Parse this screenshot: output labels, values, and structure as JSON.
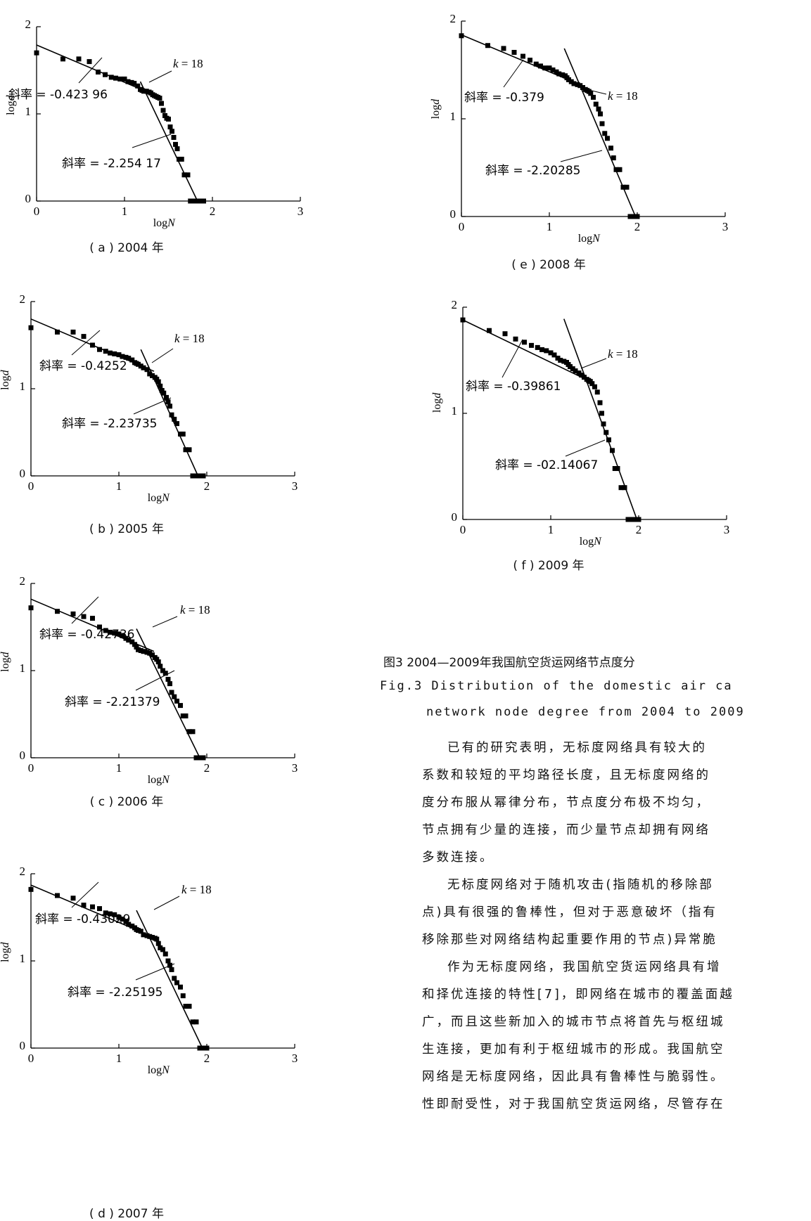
{
  "chart_data": [
    {
      "type": "scatter",
      "panel": "a",
      "caption": "( a ) 2004 年",
      "xlabel": "logN",
      "ylabel": "logd",
      "xlim": [
        0,
        3
      ],
      "ylim": [
        0,
        2
      ],
      "xticks": [
        "0",
        "1",
        "2",
        "3"
      ],
      "yticks": [
        "0",
        "1",
        "2"
      ],
      "k_label": "k = 18",
      "slope1_label": "斜率 = -0.423 96",
      "slope2_label": "斜率 = -2.254 17",
      "fit1": {
        "x": [
          0,
          1.38
        ],
        "y": [
          1.79,
          1.2
        ]
      },
      "fit2": {
        "x": [
          1.18,
          1.83
        ],
        "y": [
          1.37,
          0
        ]
      },
      "points": {
        "x": [
          0.0,
          0.3,
          0.48,
          0.6,
          0.7,
          0.78,
          0.85,
          0.9,
          0.95,
          1.0,
          1.04,
          1.08,
          1.11,
          1.15,
          1.18,
          1.2,
          1.22,
          1.25,
          1.28,
          1.3,
          1.32,
          1.34,
          1.36,
          1.38,
          1.4,
          1.42,
          1.44,
          1.46,
          1.48,
          1.5,
          1.52,
          1.54,
          1.56,
          1.58,
          1.6,
          1.62,
          1.65,
          1.68,
          1.72,
          1.75,
          1.78,
          1.81,
          1.84,
          1.87,
          1.9
        ],
        "y": [
          1.7,
          1.63,
          1.63,
          1.6,
          1.48,
          1.45,
          1.42,
          1.41,
          1.4,
          1.4,
          1.37,
          1.36,
          1.35,
          1.32,
          1.28,
          1.27,
          1.26,
          1.26,
          1.25,
          1.24,
          1.22,
          1.21,
          1.2,
          1.19,
          1.18,
          1.12,
          1.04,
          0.98,
          0.95,
          0.94,
          0.85,
          0.8,
          0.73,
          0.65,
          0.6,
          0.48,
          0.48,
          0.3,
          0.3,
          0.0,
          0.0,
          0.0,
          0.0,
          0.0,
          0.0
        ]
      }
    },
    {
      "type": "scatter",
      "panel": "b",
      "caption": "( b ) 2005 年",
      "xlabel": "logN",
      "ylabel": "logd",
      "xlim": [
        0,
        3
      ],
      "ylim": [
        0,
        2
      ],
      "xticks": [
        "0",
        "1",
        "2",
        "3"
      ],
      "yticks": [
        "0",
        "1",
        "2"
      ],
      "k_label": "k = 18",
      "slope1_label": "斜率 = -0.4252",
      "slope2_label": "斜率 = -2.23735",
      "fit1": {
        "x": [
          0,
          1.4
        ],
        "y": [
          1.8,
          1.2
        ]
      },
      "fit2": {
        "x": [
          1.25,
          1.9
        ],
        "y": [
          1.45,
          0
        ]
      },
      "points": {
        "x": [
          0.0,
          0.3,
          0.48,
          0.6,
          0.7,
          0.78,
          0.85,
          0.9,
          0.95,
          1.0,
          1.04,
          1.08,
          1.11,
          1.15,
          1.18,
          1.2,
          1.22,
          1.25,
          1.28,
          1.32,
          1.35,
          1.38,
          1.41,
          1.43,
          1.45,
          1.47,
          1.49,
          1.51,
          1.54,
          1.56,
          1.58,
          1.6,
          1.63,
          1.66,
          1.7,
          1.73,
          1.76,
          1.8,
          1.84,
          1.88,
          1.92,
          1.96
        ],
        "y": [
          1.7,
          1.65,
          1.65,
          1.6,
          1.5,
          1.45,
          1.43,
          1.41,
          1.4,
          1.39,
          1.37,
          1.36,
          1.35,
          1.33,
          1.3,
          1.29,
          1.28,
          1.26,
          1.24,
          1.22,
          1.17,
          1.15,
          1.13,
          1.11,
          1.08,
          1.03,
          0.98,
          0.95,
          0.9,
          0.85,
          0.8,
          0.7,
          0.65,
          0.6,
          0.48,
          0.48,
          0.3,
          0.3,
          0.0,
          0.0,
          0.0,
          0.0
        ]
      }
    },
    {
      "type": "scatter",
      "panel": "c",
      "caption": "( c ) 2006 年",
      "xlabel": "logN",
      "ylabel": "logd",
      "xlim": [
        0,
        3
      ],
      "ylim": [
        0,
        2
      ],
      "xticks": [
        "0",
        "1",
        "2",
        "3"
      ],
      "yticks": [
        "0",
        "1",
        "2"
      ],
      "k_label": "k = 18",
      "slope1_label": "斜率 = -0.42736",
      "slope2_label": "斜率 = -2.21379",
      "fit1": {
        "x": [
          0,
          1.4
        ],
        "y": [
          1.82,
          1.22
        ]
      },
      "fit2": {
        "x": [
          1.2,
          1.92
        ],
        "y": [
          1.48,
          0
        ]
      },
      "points": {
        "x": [
          0.0,
          0.3,
          0.48,
          0.6,
          0.7,
          0.78,
          0.85,
          0.9,
          0.95,
          1.0,
          1.04,
          1.08,
          1.11,
          1.15,
          1.18,
          1.2,
          1.22,
          1.25,
          1.28,
          1.32,
          1.35,
          1.38,
          1.41,
          1.43,
          1.45,
          1.47,
          1.5,
          1.53,
          1.56,
          1.58,
          1.6,
          1.63,
          1.66,
          1.7,
          1.73,
          1.76,
          1.8,
          1.84,
          1.88,
          1.92,
          1.96
        ],
        "y": [
          1.72,
          1.68,
          1.65,
          1.62,
          1.6,
          1.5,
          1.46,
          1.44,
          1.43,
          1.42,
          1.4,
          1.37,
          1.35,
          1.33,
          1.3,
          1.27,
          1.24,
          1.23,
          1.22,
          1.21,
          1.2,
          1.18,
          1.15,
          1.13,
          1.1,
          1.05,
          1.0,
          0.97,
          0.9,
          0.85,
          0.75,
          0.7,
          0.65,
          0.6,
          0.48,
          0.48,
          0.3,
          0.3,
          0.0,
          0.0,
          0.0
        ]
      }
    },
    {
      "type": "scatter",
      "panel": "d",
      "caption": "( d ) 2007 年",
      "xlabel": "logN",
      "ylabel": "logd",
      "xlim": [
        0,
        3
      ],
      "ylim": [
        0,
        2
      ],
      "xticks": [
        "0",
        "1",
        "2",
        "3"
      ],
      "yticks": [
        "0",
        "1",
        "2"
      ],
      "k_label": "k = 18",
      "slope1_label": "斜率 = -0.43029",
      "slope2_label": "斜率 = -2.25195",
      "fit1": {
        "x": [
          0,
          1.4
        ],
        "y": [
          1.87,
          1.27
        ]
      },
      "fit2": {
        "x": [
          1.2,
          1.95
        ],
        "y": [
          1.58,
          0
        ]
      },
      "points": {
        "x": [
          0.0,
          0.3,
          0.48,
          0.6,
          0.7,
          0.78,
          0.85,
          0.9,
          0.95,
          1.0,
          1.04,
          1.08,
          1.11,
          1.15,
          1.18,
          1.2,
          1.22,
          1.25,
          1.28,
          1.32,
          1.35,
          1.38,
          1.41,
          1.43,
          1.45,
          1.47,
          1.5,
          1.53,
          1.56,
          1.58,
          1.6,
          1.63,
          1.66,
          1.7,
          1.73,
          1.76,
          1.8,
          1.84,
          1.88,
          1.92,
          1.96,
          2.0
        ],
        "y": [
          1.82,
          1.75,
          1.72,
          1.64,
          1.62,
          1.6,
          1.55,
          1.54,
          1.53,
          1.5,
          1.48,
          1.45,
          1.42,
          1.4,
          1.38,
          1.36,
          1.35,
          1.34,
          1.3,
          1.29,
          1.28,
          1.27,
          1.26,
          1.25,
          1.2,
          1.15,
          1.13,
          1.08,
          1.0,
          0.95,
          0.9,
          0.8,
          0.75,
          0.7,
          0.6,
          0.48,
          0.48,
          0.3,
          0.3,
          0.0,
          0.0,
          0.0
        ]
      }
    },
    {
      "type": "scatter",
      "panel": "e",
      "caption": "( e ) 2008 年",
      "xlabel": "logN",
      "ylabel": "logd",
      "xlim": [
        0,
        3
      ],
      "ylim": [
        0,
        2
      ],
      "xticks": [
        "0",
        "1",
        "2",
        "3"
      ],
      "yticks": [
        "0",
        "1",
        "2"
      ],
      "k_label": "k = 18",
      "slope1_label": "斜率 = -0.379",
      "slope2_label": "斜率 = -2.20285",
      "fit1": {
        "x": [
          0,
          1.4
        ],
        "y": [
          1.86,
          1.33
        ]
      },
      "fit2": {
        "x": [
          1.17,
          1.98
        ],
        "y": [
          1.72,
          0
        ]
      },
      "points": {
        "x": [
          0.0,
          0.3,
          0.48,
          0.6,
          0.7,
          0.78,
          0.85,
          0.9,
          0.95,
          1.0,
          1.04,
          1.08,
          1.11,
          1.15,
          1.18,
          1.2,
          1.22,
          1.25,
          1.28,
          1.32,
          1.35,
          1.38,
          1.41,
          1.43,
          1.45,
          1.47,
          1.5,
          1.53,
          1.56,
          1.58,
          1.6,
          1.63,
          1.66,
          1.7,
          1.73,
          1.76,
          1.8,
          1.84,
          1.88,
          1.92,
          1.96,
          2.0
        ],
        "y": [
          1.85,
          1.75,
          1.72,
          1.68,
          1.64,
          1.6,
          1.56,
          1.54,
          1.52,
          1.52,
          1.5,
          1.48,
          1.46,
          1.45,
          1.44,
          1.42,
          1.4,
          1.38,
          1.36,
          1.35,
          1.34,
          1.32,
          1.3,
          1.29,
          1.28,
          1.26,
          1.22,
          1.15,
          1.1,
          1.05,
          0.95,
          0.85,
          0.8,
          0.7,
          0.6,
          0.48,
          0.48,
          0.3,
          0.3,
          0.0,
          0.0,
          0.0
        ]
      }
    },
    {
      "type": "scatter",
      "panel": "f",
      "caption": "( f ) 2009 年",
      "xlabel": "logN",
      "ylabel": "logd",
      "xlim": [
        0,
        3
      ],
      "ylim": [
        0,
        2
      ],
      "xticks": [
        "0",
        "1",
        "2",
        "3"
      ],
      "yticks": [
        "0",
        "1",
        "2"
      ],
      "k_label": "k = 18",
      "slope1_label": "斜率 = -0.39861",
      "slope2_label": "斜率 = -02.14067",
      "fit1": {
        "x": [
          0,
          1.45
        ],
        "y": [
          1.88,
          1.3
        ]
      },
      "fit2": {
        "x": [
          1.15,
          1.98
        ],
        "y": [
          1.89,
          0
        ]
      },
      "points": {
        "x": [
          0.0,
          0.3,
          0.48,
          0.6,
          0.7,
          0.78,
          0.85,
          0.9,
          0.95,
          1.0,
          1.04,
          1.08,
          1.11,
          1.15,
          1.18,
          1.2,
          1.22,
          1.25,
          1.28,
          1.32,
          1.35,
          1.38,
          1.41,
          1.43,
          1.45,
          1.47,
          1.5,
          1.53,
          1.56,
          1.58,
          1.6,
          1.63,
          1.66,
          1.7,
          1.73,
          1.76,
          1.8,
          1.84,
          1.88,
          1.92,
          1.96,
          2.0
        ],
        "y": [
          1.88,
          1.78,
          1.75,
          1.7,
          1.67,
          1.64,
          1.62,
          1.6,
          1.59,
          1.57,
          1.55,
          1.52,
          1.5,
          1.49,
          1.48,
          1.46,
          1.44,
          1.42,
          1.4,
          1.38,
          1.36,
          1.34,
          1.32,
          1.31,
          1.3,
          1.28,
          1.25,
          1.2,
          1.1,
          1.0,
          0.9,
          0.82,
          0.75,
          0.65,
          0.48,
          0.48,
          0.3,
          0.3,
          0.0,
          0.0,
          0.0,
          0.0
        ]
      }
    }
  ],
  "figure": {
    "title_cn": "图3   2004—2009年我国航空货运网络节点度分",
    "title_en_line1": "Fig.3  Distribution of the domestic air ca",
    "title_en_line2": "network node degree from 2004 to 2009"
  },
  "body": {
    "paragraphs": [
      [
        "已有的研究表明，无标度网络具有较大的",
        "系数和较短的平均路径长度，且无标度网络的",
        "度分布服从幂律分布，节点度分布极不均匀，",
        "节点拥有少量的连接，而少量节点却拥有网络",
        "多数连接。"
      ],
      [
        "无标度网络对于随机攻击(指随机的移除部",
        "点)具有很强的鲁棒性，但对于恶意破坏（指有",
        "移除那些对网络结构起重要作用的节点)异常脆"
      ],
      [
        "作为无标度网络，我国航空货运网络具有增",
        "和择优连接的特性[7]，即网络在城市的覆盖面越",
        "广，而且这些新加入的城市节点将首先与枢纽城",
        "生连接，更加有利于枢纽城市的形成。我国航空",
        "网络是无标度网络，因此具有鲁棒性与脆弱性。",
        "性即耐受性，对于我国航空货运网络，尽管存在"
      ]
    ]
  }
}
